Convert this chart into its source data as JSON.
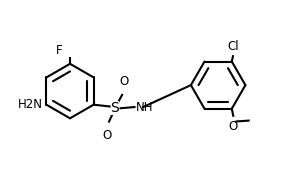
{
  "bg_color": "#ffffff",
  "line_color": "#000000",
  "text_color": "#000000",
  "line_width": 1.5,
  "font_size": 8.5,
  "ring_r": 0.92,
  "F_label": "F",
  "NH2_label": "H2N",
  "Cl_label": "Cl",
  "S_label": "S",
  "NH_label": "NH",
  "O_label": "O",
  "OMe_label": "O"
}
